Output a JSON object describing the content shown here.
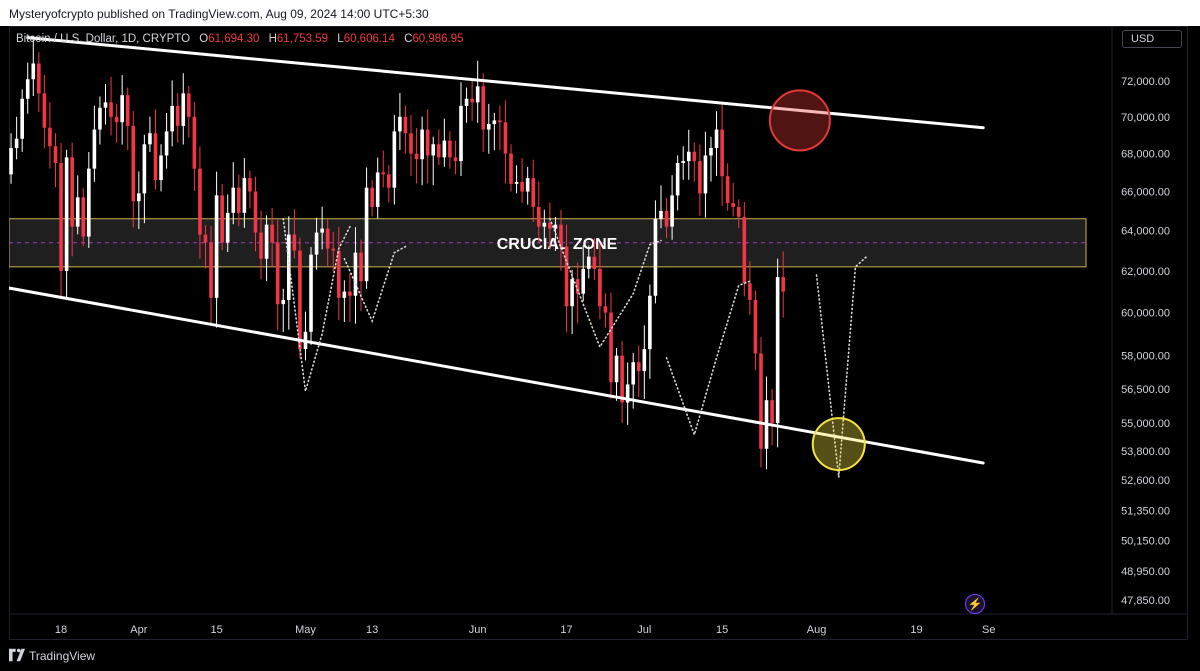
{
  "header": {
    "publish_line": "Mysteryofcrypto published on TradingView.com, Aug 09, 2024 14:00 UTC+5:30"
  },
  "symbol": {
    "name": "Bitcoin / U.S. Dollar, 1D, CRYPTO",
    "open_label": "O",
    "open": "61,694.30",
    "high_label": "H",
    "high": "61,753.59",
    "low_label": "L",
    "low": "60,606.14",
    "close_label": "C",
    "close": "60,986.95"
  },
  "currency": "USD",
  "brand": "TradingView",
  "colors": {
    "up": "#ffffff",
    "down": "#f23645",
    "zone_border": "#c8b34a",
    "zone_mid": "#9c3fbf",
    "red_circle": "#e53935",
    "yellow_circle": "#f5e342"
  },
  "icons": {
    "logo": "tradingview-logo-icon",
    "bolt": "lightning-bolt-icon"
  },
  "chart_data": {
    "type": "candlestick",
    "title": "Bitcoin / U.S. Dollar, 1D, CRYPTO",
    "ylim": [
      47000,
      74800
    ],
    "y_scale": "log",
    "y_ticks": [
      "72,000.00",
      "70,000.00",
      "68,000.00",
      "66,000.00",
      "64,000.00",
      "62,000.00",
      "60,000.00",
      "58,000.00",
      "56,500.00",
      "55,000.00",
      "53,800.00",
      "52,600.00",
      "51,350.00",
      "50,150.00",
      "48,950.00",
      "47,850.00"
    ],
    "x_ticks": [
      {
        "label": "18",
        "date": "2024-03-18"
      },
      {
        "label": "Apr",
        "date": "2024-04-01"
      },
      {
        "label": "15",
        "date": "2024-04-15"
      },
      {
        "label": "May",
        "date": "2024-05-01"
      },
      {
        "label": "13",
        "date": "2024-05-13"
      },
      {
        "label": "Jun",
        "date": "2024-06-01"
      },
      {
        "label": "17",
        "date": "2024-06-17"
      },
      {
        "label": "Jul",
        "date": "2024-07-01"
      },
      {
        "label": "15",
        "date": "2024-07-15"
      },
      {
        "label": "Aug",
        "date": "2024-08-01"
      },
      {
        "label": "19",
        "date": "2024-08-19"
      },
      {
        "label": "Se",
        "date": "2024-09-01"
      }
    ],
    "start_date": "2024-03-08",
    "closes": [
      66900,
      68300,
      68800,
      71000,
      72100,
      73000,
      71300,
      69400,
      68400,
      67500,
      62000,
      67800,
      64200,
      65700,
      63700,
      67200,
      69300,
      70500,
      70800,
      70000,
      69700,
      71200,
      69500,
      65500,
      65900,
      68500,
      69100,
      66600,
      67900,
      69200,
      70600,
      69500,
      71300,
      70000,
      67200,
      63800,
      63400,
      60700,
      65800,
      63400,
      64900,
      66200,
      64900,
      66700,
      66000,
      63900,
      62600,
      64300,
      63400,
      60400,
      60600,
      63800,
      63000,
      58300,
      59100,
      62800,
      63900,
      64100,
      63100,
      63000,
      60700,
      61000,
      60800,
      62900,
      61500,
      66200,
      65200,
      67000,
      66900,
      66200,
      69200,
      70000,
      69100,
      68000,
      67700,
      69300,
      67900,
      68500,
      67800,
      68700,
      67800,
      67600,
      70600,
      71000,
      70800,
      71700,
      69300,
      69600,
      69800,
      69700,
      68000,
      66400,
      66500,
      66000,
      66700,
      65200,
      64200,
      64400,
      64100,
      64300,
      63200,
      60300,
      61600,
      60900,
      62100,
      62700,
      62100,
      60300,
      60000,
      56800,
      58000,
      55900,
      56700,
      57700,
      57300,
      58300,
      60800,
      64600,
      65000,
      64200,
      65800,
      67500,
      67600,
      68100,
      67600,
      65900,
      67900,
      68300,
      69300,
      66800,
      65400,
      65200,
      64700,
      61400,
      60600,
      58100,
      53900,
      56000,
      55000,
      61700,
      61000
    ]
  },
  "annotations": {
    "zone_label": "CRUCIAL ZONE",
    "zone_range": [
      62200,
      64600
    ],
    "upper_trendline": [
      [
        "2024-03-12",
        74500
      ],
      [
        "2024-08-31",
        69400
      ]
    ],
    "lower_trendline": [
      [
        "2024-03-08",
        61200
      ],
      [
        "2024-08-31",
        53300
      ]
    ],
    "red_circle_center": [
      "2024-07-29",
      69800
    ],
    "yellow_circle_center": [
      "2024-08-05",
      54100
    ]
  }
}
